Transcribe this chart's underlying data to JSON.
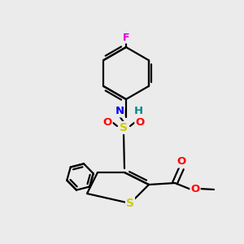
{
  "background_color": "#ebebeb",
  "bond_color": "#000000",
  "atom_colors": {
    "S_sulfonyl": "#cccc00",
    "S_thio": "#cccc00",
    "O": "#ff0000",
    "N": "#0000ee",
    "H": "#008888",
    "F": "#dd00dd",
    "C": "#000000"
  },
  "figsize": [
    3.0,
    3.0
  ],
  "dpi": 100
}
